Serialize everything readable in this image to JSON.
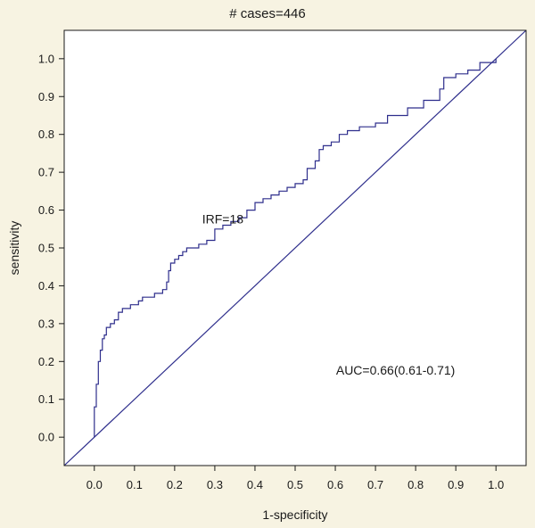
{
  "chart_data": {
    "type": "line",
    "title": "# cases=446",
    "xlabel": "1-specificity",
    "ylabel": "sensitivity",
    "xlim": [
      -0.075,
      1.075
    ],
    "ylim": [
      -0.075,
      1.075
    ],
    "x_ticks": [
      "0.0",
      "0.1",
      "0.2",
      "0.3",
      "0.4",
      "0.5",
      "0.6",
      "0.7",
      "0.8",
      "0.9",
      "1.0"
    ],
    "y_ticks": [
      "0.0",
      "0.1",
      "0.2",
      "0.3",
      "0.4",
      "0.5",
      "0.6",
      "0.7",
      "0.8",
      "0.9",
      "1.0"
    ],
    "grid": false,
    "line_color": "#2e2e8c",
    "series": [
      {
        "style": "step",
        "x": [
          0.0,
          0.0,
          0.005,
          0.005,
          0.01,
          0.01,
          0.015,
          0.015,
          0.02,
          0.02,
          0.025,
          0.03,
          0.04,
          0.05,
          0.06,
          0.07,
          0.09,
          0.11,
          0.12,
          0.13,
          0.15,
          0.17,
          0.18,
          0.185,
          0.19,
          0.2,
          0.21,
          0.22,
          0.23,
          0.26,
          0.28,
          0.3,
          0.32,
          0.34,
          0.36,
          0.38,
          0.4,
          0.42,
          0.44,
          0.46,
          0.48,
          0.5,
          0.52,
          0.53,
          0.55,
          0.56,
          0.57,
          0.59,
          0.61,
          0.63,
          0.66,
          0.7,
          0.73,
          0.78,
          0.82,
          0.86,
          0.87,
          0.9,
          0.93,
          0.96,
          1.0
        ],
        "y": [
          0.0,
          0.08,
          0.1,
          0.14,
          0.17,
          0.2,
          0.22,
          0.23,
          0.25,
          0.26,
          0.27,
          0.29,
          0.3,
          0.31,
          0.33,
          0.34,
          0.35,
          0.36,
          0.37,
          0.37,
          0.38,
          0.39,
          0.41,
          0.44,
          0.46,
          0.47,
          0.48,
          0.49,
          0.5,
          0.51,
          0.52,
          0.55,
          0.56,
          0.57,
          0.58,
          0.6,
          0.62,
          0.63,
          0.64,
          0.65,
          0.66,
          0.67,
          0.68,
          0.71,
          0.73,
          0.76,
          0.77,
          0.78,
          0.8,
          0.81,
          0.82,
          0.83,
          0.85,
          0.87,
          0.89,
          0.92,
          0.95,
          0.96,
          0.97,
          0.99,
          1.0
        ]
      },
      {
        "style": "line",
        "x": [
          -0.075,
          1.075
        ],
        "y": [
          -0.075,
          1.075
        ]
      }
    ],
    "annotations": [
      {
        "text": "IRF=18",
        "x": 0.32,
        "y": 0.565
      },
      {
        "text": "AUC=0.66(0.61-0.71)",
        "x": 0.75,
        "y": 0.165
      }
    ]
  }
}
